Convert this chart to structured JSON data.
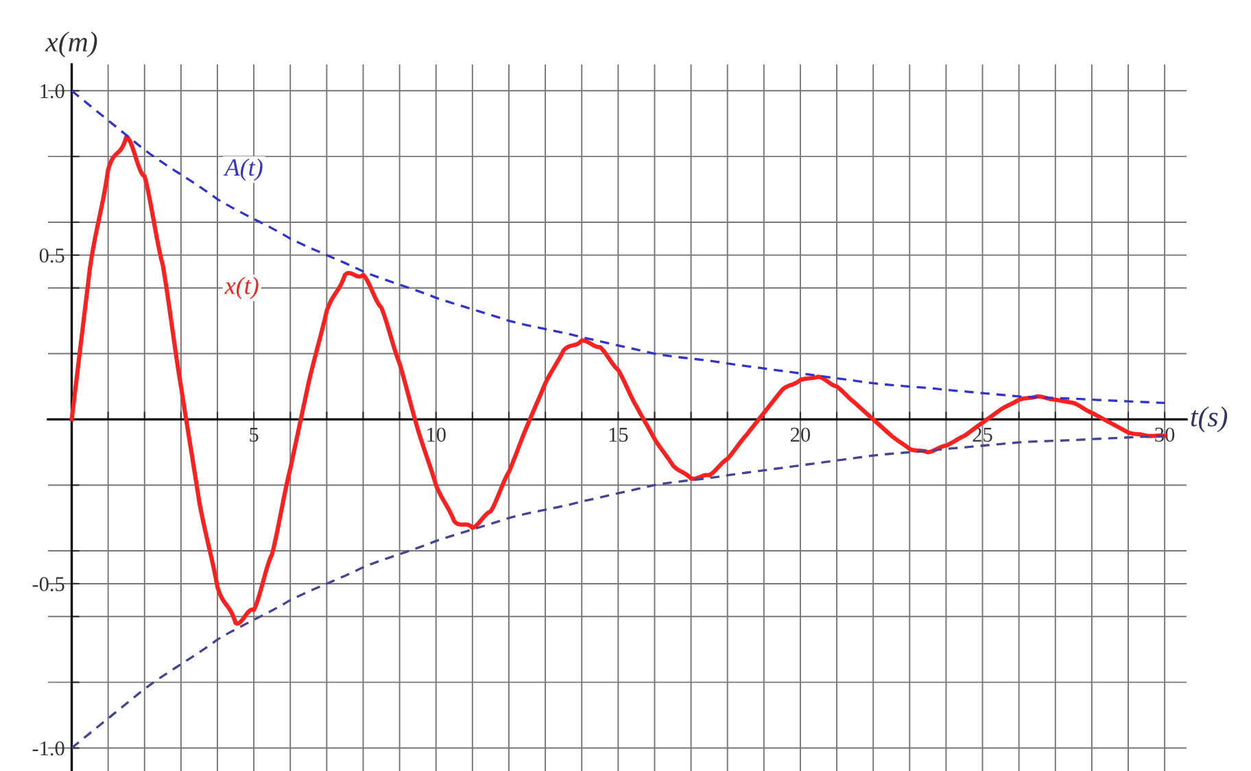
{
  "chart_data": {
    "type": "line",
    "xlabel": "t(s)",
    "ylabel": "x(m)",
    "xlim": [
      -0.65,
      30.6
    ],
    "ylim": [
      -1.07,
      1.08
    ],
    "xticks": [
      {
        "value": 1,
        "label": null
      },
      {
        "value": 2,
        "label": null
      },
      {
        "value": 3,
        "label": null
      },
      {
        "value": 4,
        "label": null
      },
      5,
      {
        "value": 6,
        "label": null
      },
      {
        "value": 7,
        "label": null
      },
      {
        "value": 8,
        "label": null
      },
      {
        "value": 9,
        "label": null
      },
      10,
      {
        "value": 11,
        "label": null
      },
      {
        "value": 12,
        "label": null
      },
      {
        "value": 13,
        "label": null
      },
      {
        "value": 14,
        "label": null
      },
      15,
      {
        "value": 16,
        "label": null
      },
      {
        "value": 17,
        "label": null
      },
      {
        "value": 18,
        "label": null
      },
      {
        "value": 19,
        "label": null
      },
      20,
      {
        "value": 21,
        "label": null
      },
      {
        "value": 22,
        "label": null
      },
      {
        "value": 23,
        "label": null
      },
      {
        "value": 24,
        "label": null
      },
      25,
      {
        "value": 26,
        "label": null
      },
      {
        "value": 27,
        "label": null
      },
      {
        "value": 28,
        "label": null
      },
      {
        "value": 29,
        "label": null
      },
      30
    ],
    "yticks": [
      {
        "value": -1.0,
        "label": "-1.0"
      },
      {
        "value": -0.8,
        "label": null
      },
      {
        "value": -0.6,
        "label": null
      },
      {
        "value": -0.5,
        "label": "-0.5"
      },
      {
        "value": -0.4,
        "label": null
      },
      {
        "value": -0.2,
        "label": null
      },
      {
        "value": 0.2,
        "label": null
      },
      {
        "value": 0.4,
        "label": null
      },
      {
        "value": 0.5,
        "label": "0.5"
      },
      {
        "value": 0.6,
        "label": null
      },
      {
        "value": 0.8,
        "label": null
      },
      {
        "value": 1.0,
        "label": "1.0"
      }
    ],
    "grid": true,
    "series": [
      {
        "name": "x(t)",
        "color": "#ff2020",
        "line_style": "solid",
        "x": [
          0,
          0.5,
          1,
          1.5,
          2,
          2.5,
          3,
          3.5,
          4,
          4.5,
          5,
          5.5,
          6,
          6.5,
          7,
          7.5,
          8,
          8.5,
          9,
          9.5,
          10,
          10.5,
          11,
          11.5,
          12,
          12.5,
          13,
          13.5,
          14,
          14.5,
          15,
          15.5,
          16,
          16.5,
          17,
          17.5,
          18,
          18.5,
          19,
          19.5,
          20,
          20.5,
          21,
          21.5,
          22,
          22.5,
          23,
          23.5,
          24,
          24.5,
          25,
          25.5,
          26,
          26.5,
          27,
          27.5,
          28,
          28.5,
          29,
          29.5,
          30
        ],
        "values": [
          0,
          0.46,
          0.76,
          0.86,
          0.74,
          0.47,
          0.1,
          -0.25,
          -0.51,
          -0.62,
          -0.58,
          -0.41,
          -0.15,
          0.11,
          0.33,
          0.44,
          0.44,
          0.34,
          0.17,
          -0.03,
          -0.2,
          -0.31,
          -0.33,
          -0.28,
          -0.16,
          -0.02,
          0.11,
          0.21,
          0.24,
          0.22,
          0.15,
          0.04,
          -0.06,
          -0.14,
          -0.18,
          -0.17,
          -0.12,
          -0.05,
          0.02,
          0.09,
          0.12,
          0.13,
          0.1,
          0.05,
          0,
          -0.05,
          -0.09,
          -0.1,
          -0.08,
          -0.05,
          -0.01,
          0.03,
          0.06,
          0.07,
          0.06,
          0.05,
          0.02,
          -0.01,
          -0.04,
          -0.05,
          -0.05
        ]
      },
      {
        "name": "A(t)",
        "color": "#3333cc",
        "line_style": "dashed",
        "x": [
          0,
          2,
          4,
          6,
          8,
          10,
          12,
          14,
          16,
          18,
          20,
          22,
          24,
          26,
          28,
          30
        ],
        "values": [
          1,
          0.82,
          0.67,
          0.55,
          0.45,
          0.37,
          0.3,
          0.25,
          0.2,
          0.17,
          0.14,
          0.11,
          0.09,
          0.07,
          0.06,
          0.05
        ]
      },
      {
        "color": "#44448f",
        "line_style": "dashed",
        "x": [
          0,
          2,
          4,
          6,
          8,
          10,
          12,
          14,
          16,
          18,
          20,
          22,
          24,
          26,
          28,
          30
        ],
        "values": [
          -1,
          -0.82,
          -0.67,
          -0.55,
          -0.45,
          -0.37,
          -0.3,
          -0.25,
          -0.2,
          -0.17,
          -0.14,
          -0.11,
          -0.09,
          -0.07,
          -0.06,
          -0.05
        ]
      }
    ]
  }
}
